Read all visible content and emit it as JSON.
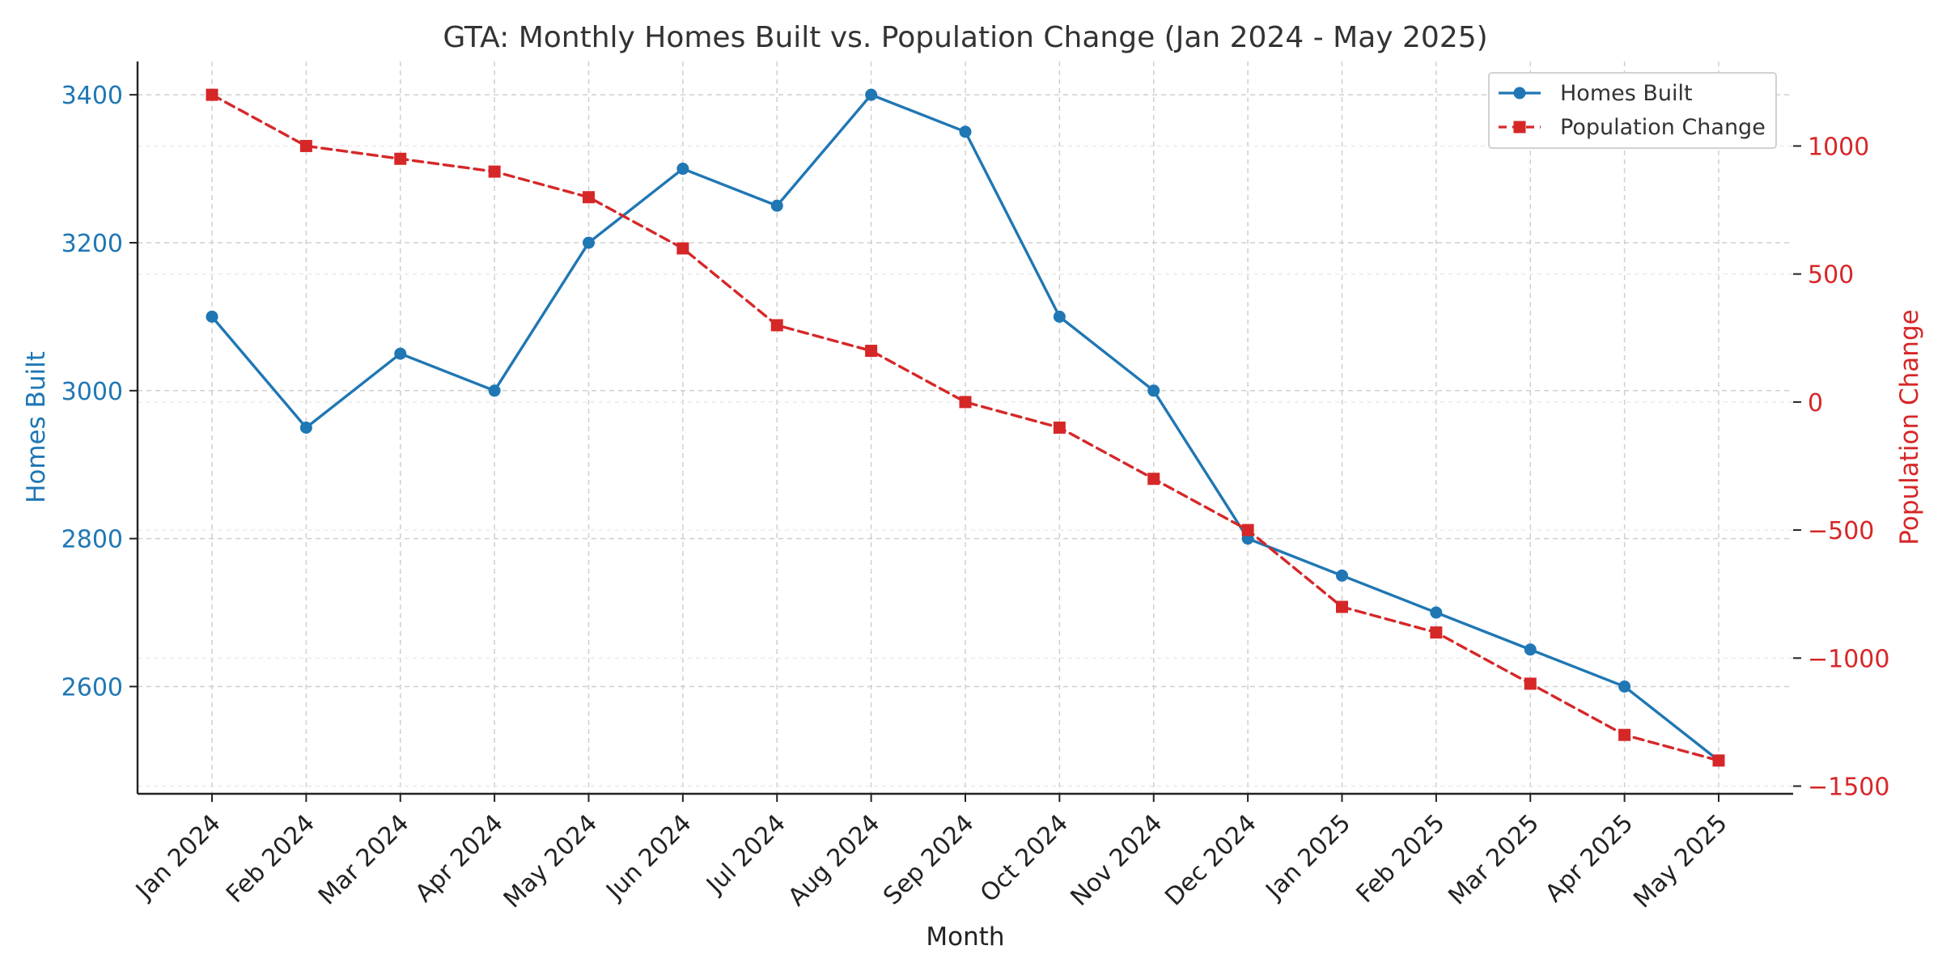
{
  "chart_data": {
    "type": "line",
    "title": "GTA: Monthly Homes Built vs. Population Change (Jan 2024 - May 2025)",
    "xlabel": "Month",
    "categories": [
      "Jan 2024",
      "Feb 2024",
      "Mar 2024",
      "Apr 2024",
      "May 2024",
      "Jun 2024",
      "Jul 2024",
      "Aug 2024",
      "Sep 2024",
      "Oct 2024",
      "Nov 2024",
      "Dec 2024",
      "Jan 2025",
      "Feb 2025",
      "Mar 2025",
      "Apr 2025",
      "May 2025"
    ],
    "series": [
      {
        "name": "Homes Built",
        "axis": "left",
        "color": "#1f77b4",
        "line_style": "solid",
        "marker": "circle",
        "values": [
          3100,
          2950,
          3050,
          3000,
          3200,
          3300,
          3250,
          3400,
          3350,
          3100,
          3000,
          2800,
          2750,
          2700,
          2650,
          2600,
          2500
        ]
      },
      {
        "name": "Population Change",
        "axis": "right",
        "color": "#d62728",
        "line_style": "dashed",
        "marker": "square",
        "values": [
          1200,
          1000,
          950,
          900,
          800,
          600,
          300,
          200,
          0,
          -100,
          -300,
          -500,
          -800,
          -900,
          -1100,
          -1300,
          -1400
        ]
      }
    ],
    "y_left": {
      "label": "Homes Built",
      "color": "#1f77b4",
      "ticks": [
        2600,
        2800,
        3000,
        3200,
        3400
      ],
      "ylim": [
        2455,
        3445
      ]
    },
    "y_right": {
      "label": "Population Change",
      "color": "#d62728",
      "ticks": [
        -1500,
        -1000,
        -500,
        0,
        500,
        1000
      ],
      "ylim": [
        -1530,
        1330
      ]
    },
    "grid": true,
    "legend": "top-right"
  }
}
